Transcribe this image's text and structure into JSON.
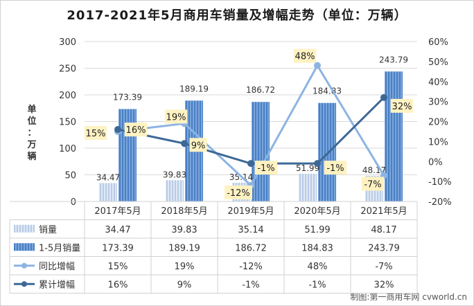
{
  "title": "2017-2021年5月商用车销量及增幅走势（单位：万辆）",
  "ylabel": "单位：万辆",
  "credit": "制图:第一商用车网 cvworld.cn",
  "chart_data": {
    "type": "bar",
    "categories": [
      "2017年5月",
      "2018年5月",
      "2019年5月",
      "2020年5月",
      "2021年5月"
    ],
    "y_left": {
      "min": 0,
      "max": 300,
      "ticks": [
        0,
        50,
        100,
        150,
        200,
        250,
        300
      ]
    },
    "y_right": {
      "min": -20,
      "max": 60,
      "ticks": [
        "-20%",
        "-10%",
        "0%",
        "10%",
        "20%",
        "30%",
        "40%",
        "50%",
        "60%"
      ]
    },
    "series": [
      {
        "name": "销量",
        "kind": "bar",
        "axis": "left",
        "values": [
          34.47,
          39.83,
          35.14,
          51.99,
          48.17
        ],
        "labels": [
          "34.47",
          "39.83",
          "35.14",
          "51.99",
          "48.17"
        ],
        "color": "#c9d7ec"
      },
      {
        "name": "1-5月销量",
        "kind": "bar",
        "axis": "left",
        "values": [
          173.39,
          189.19,
          186.72,
          184.83,
          243.79
        ],
        "labels": [
          "173.39",
          "189.19",
          "186.72",
          "184.83",
          "243.79"
        ],
        "color": "#5b8fd0"
      },
      {
        "name": "同比增幅",
        "kind": "line",
        "axis": "right",
        "values": [
          15,
          19,
          -12,
          48,
          -7
        ],
        "labels": [
          "15%",
          "19%",
          "-12%",
          "48%",
          "-7%"
        ],
        "color": "#8cb4e2"
      },
      {
        "name": "累计增幅",
        "kind": "line",
        "axis": "right",
        "values": [
          16,
          9,
          -1,
          -1,
          32
        ],
        "labels": [
          "16%",
          "9%",
          "-1%",
          "-1%",
          "32%"
        ],
        "color": "#3d6896"
      }
    ],
    "grid": true,
    "legend": "data-table-below"
  }
}
